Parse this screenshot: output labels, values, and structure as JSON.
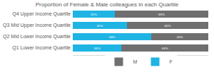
{
  "chart_data": {
    "type": "bar",
    "title": "Proportion of Female & Male colleagues in each Quartile",
    "orientation": "horizontal",
    "stacked": true,
    "data_labels": true,
    "tick_labels": "y",
    "grid": false,
    "legend": "bottom",
    "categories": [
      "Q4 Upper Income Quartile",
      "Q3 Mid Upper Income Quartile",
      "Q2 Mid Lower Income Quartile",
      "Q1 Lower Income Quartile"
    ],
    "xlim": [
      0,
      100
    ],
    "series": [
      {
        "name": "F",
        "color": "#1fb4e3",
        "values": [
          31,
          40,
          58,
          36
        ],
        "value_labels": [
          "31%",
          "40%",
          "58%",
          "36%"
        ]
      },
      {
        "name": "M",
        "color": "#6f6f6f",
        "values": [
          69,
          60,
          42,
          64
        ],
        "value_labels": [
          "69%",
          "60%",
          "42%",
          "64%"
        ]
      }
    ]
  }
}
